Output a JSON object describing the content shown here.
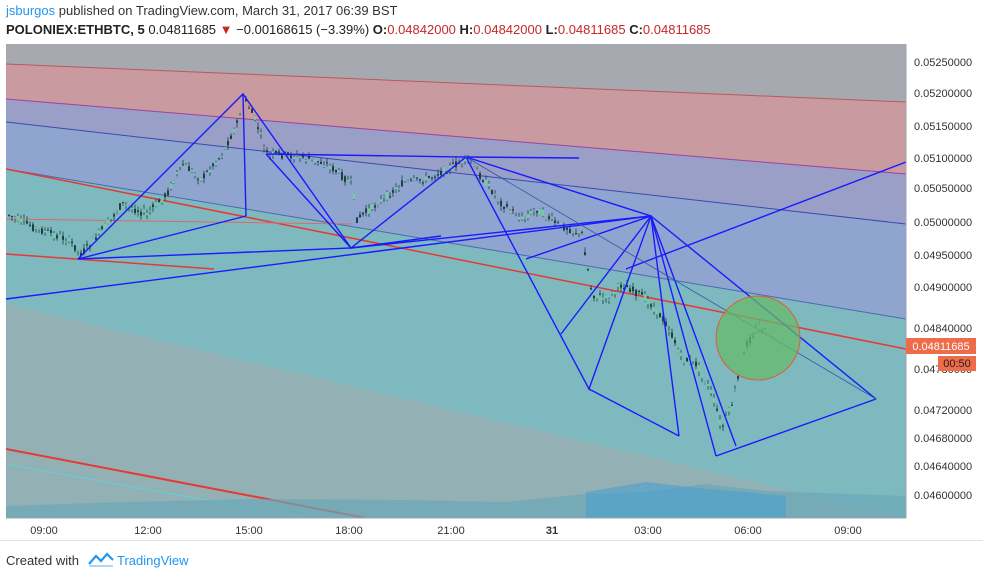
{
  "header": {
    "author": "jsburgos",
    "published_text": "published on TradingView.com, March 31, 2017 06:39 BST",
    "symbol": "POLONIEX:ETHBTC, 5",
    "last_price": "0.04811685",
    "change_arrow": "▼",
    "change": "−0.00168615 (−3.39%)",
    "o_label": "O:",
    "o_value": "0.04842000",
    "h_label": "H:",
    "h_value": "0.04842000",
    "l_label": "L:",
    "l_value": "0.04811685",
    "c_label": "C:",
    "c_value": "0.04811685"
  },
  "price_axis": {
    "labels": [
      "0.05250000",
      "0.05200000",
      "0.05150000",
      "0.05100000",
      "0.05050000",
      "0.05000000",
      "0.04950000",
      "0.04900000",
      "0.04840000",
      "0.04780000",
      "0.04720000",
      "0.04680000",
      "0.04640000",
      "0.04600000"
    ],
    "current_price": "0.04811685",
    "countdown": "00:50"
  },
  "time_axis": {
    "labels": [
      "09:00",
      "12:00",
      "15:00",
      "18:00",
      "21:00",
      "31",
      "03:00",
      "06:00",
      "09:00"
    ]
  },
  "colors": {
    "bg_lower": "#7fb9c0",
    "band_red": "#d79a9a",
    "band_blue": "#8f9fd0",
    "pattern_blue": "#1a1aff",
    "trend_red": "#e53935",
    "circle_fill": "#66bb6a",
    "price_tag": "#ef6c4a"
  },
  "footer": {
    "created_with": "Created with",
    "brand": "TradingView"
  }
}
